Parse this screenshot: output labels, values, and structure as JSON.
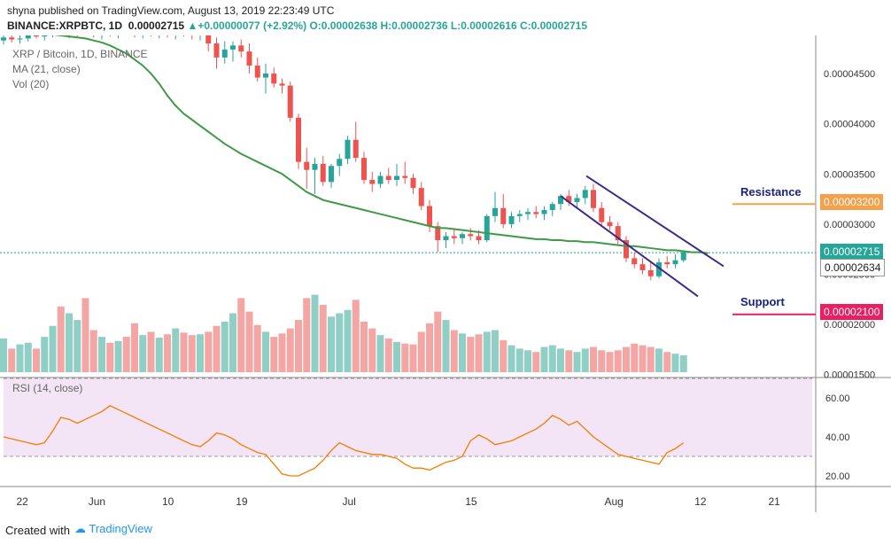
{
  "header": {
    "publish_line": "shyna published on TradingView.com, August 13, 2019 22:23:49 UTC",
    "symbol": "BINANCE:XRPBTC, 1D",
    "price": "0.00002715",
    "change_arrow": "▲",
    "change": "+0.00000077 (+2.92%)",
    "ohlc": "O:0.00002638 H:0.00002736 L:0.00002616 C:0.00002715"
  },
  "legend": {
    "series_name": "XRP / Bitcoin, 1D, BINANCE",
    "ma_label": "MA (21, close)",
    "vol_label": "Vol (20)",
    "rsi_label": "RSI (14, close)"
  },
  "annotations": {
    "resistance": "Resistance",
    "support": "Support"
  },
  "price_tags": {
    "resistance": "0.00003200",
    "last": "0.00002715",
    "prev": "0.00002634",
    "support": "0.00002100"
  },
  "footer": {
    "created_with": "Created with",
    "brand": "TradingView"
  },
  "colors": {
    "up": "#26a69a",
    "down": "#ef5350",
    "ma": "#3f9a46",
    "rsi": "#f57c00",
    "resistance": "#f5a04a",
    "support": "#e91e63",
    "channel": "#3f2a8c"
  },
  "chart_data": {
    "type": "candlestick",
    "price_axis": {
      "ticks": [
        "0.00004500",
        "0.00004000",
        "0.00003500",
        "0.00003000",
        "0.00002500",
        "0.00002000",
        "0.00001500"
      ],
      "range": [
        1.48e-05,
        4.88e-05
      ]
    },
    "time_axis": {
      "ticks": [
        "22",
        "Jun",
        "10",
        "19",
        "Jul",
        "15",
        "Aug",
        "12",
        "21"
      ]
    },
    "rsi_axis": {
      "ticks": [
        "60.00",
        "40.00",
        "20.00"
      ],
      "range": [
        15,
        70
      ],
      "band": [
        30,
        70
      ]
    },
    "candles": [
      {
        "o": 4.83,
        "h": 4.9,
        "l": 4.79,
        "c": 4.86
      },
      {
        "o": 4.86,
        "h": 4.92,
        "l": 4.81,
        "c": 4.84
      },
      {
        "o": 4.84,
        "h": 4.9,
        "l": 4.8,
        "c": 4.85
      },
      {
        "o": 4.85,
        "h": 4.95,
        "l": 4.82,
        "c": 4.9
      },
      {
        "o": 4.9,
        "h": 4.96,
        "l": 4.85,
        "c": 4.87
      },
      {
        "o": 4.87,
        "h": 4.93,
        "l": 4.83,
        "c": 4.9
      },
      {
        "o": 4.9,
        "h": 4.96,
        "l": 4.86,
        "c": 4.92
      },
      {
        "o": 4.92,
        "h": 4.98,
        "l": 4.87,
        "c": 4.89
      },
      {
        "o": 4.89,
        "h": 4.95,
        "l": 4.85,
        "c": 4.91
      },
      {
        "o": 4.91,
        "h": 4.97,
        "l": 4.87,
        "c": 4.93
      },
      {
        "o": 4.93,
        "h": 4.99,
        "l": 4.88,
        "c": 4.9
      },
      {
        "o": 4.9,
        "h": 4.96,
        "l": 4.86,
        "c": 4.88
      },
      {
        "o": 4.88,
        "h": 4.94,
        "l": 4.84,
        "c": 4.91
      },
      {
        "o": 4.91,
        "h": 4.97,
        "l": 4.87,
        "c": 4.89
      },
      {
        "o": 4.89,
        "h": 4.95,
        "l": 4.85,
        "c": 4.92
      },
      {
        "o": 4.92,
        "h": 4.97,
        "l": 4.88,
        "c": 4.9
      },
      {
        "o": 4.9,
        "h": 4.96,
        "l": 4.86,
        "c": 4.89
      },
      {
        "o": 4.89,
        "h": 4.95,
        "l": 4.85,
        "c": 4.91
      },
      {
        "o": 4.91,
        "h": 4.97,
        "l": 4.87,
        "c": 4.89
      },
      {
        "o": 4.89,
        "h": 4.95,
        "l": 4.85,
        "c": 4.9
      },
      {
        "o": 4.9,
        "h": 4.96,
        "l": 4.86,
        "c": 4.88
      },
      {
        "o": 4.88,
        "h": 4.94,
        "l": 4.84,
        "c": 4.91
      },
      {
        "o": 4.91,
        "h": 4.97,
        "l": 4.87,
        "c": 4.89
      },
      {
        "o": 4.89,
        "h": 4.94,
        "l": 4.84,
        "c": 4.88
      },
      {
        "o": 4.88,
        "h": 4.93,
        "l": 4.83,
        "c": 4.9
      },
      {
        "o": 4.9,
        "h": 4.94,
        "l": 4.72,
        "c": 4.8
      },
      {
        "o": 4.8,
        "h": 4.86,
        "l": 4.55,
        "c": 4.66
      },
      {
        "o": 4.66,
        "h": 4.82,
        "l": 4.6,
        "c": 4.74
      },
      {
        "o": 4.74,
        "h": 4.82,
        "l": 4.62,
        "c": 4.78
      },
      {
        "o": 4.78,
        "h": 4.84,
        "l": 4.66,
        "c": 4.72
      },
      {
        "o": 4.72,
        "h": 4.8,
        "l": 4.5,
        "c": 4.58
      },
      {
        "o": 4.58,
        "h": 4.66,
        "l": 4.42,
        "c": 4.46
      },
      {
        "o": 4.46,
        "h": 4.6,
        "l": 4.3,
        "c": 4.5
      },
      {
        "o": 4.5,
        "h": 4.56,
        "l": 4.36,
        "c": 4.4
      },
      {
        "o": 4.4,
        "h": 4.45,
        "l": 4.3,
        "c": 4.38
      },
      {
        "o": 4.38,
        "h": 4.42,
        "l": 4.02,
        "c": 4.06
      },
      {
        "o": 4.06,
        "h": 4.1,
        "l": 3.55,
        "c": 3.62
      },
      {
        "o": 3.62,
        "h": 3.76,
        "l": 3.35,
        "c": 3.54
      },
      {
        "o": 3.54,
        "h": 3.66,
        "l": 3.3,
        "c": 3.6
      },
      {
        "o": 3.6,
        "h": 3.68,
        "l": 3.38,
        "c": 3.42
      },
      {
        "o": 3.42,
        "h": 3.6,
        "l": 3.36,
        "c": 3.58
      },
      {
        "o": 3.58,
        "h": 3.7,
        "l": 3.48,
        "c": 3.65
      },
      {
        "o": 3.65,
        "h": 3.88,
        "l": 3.6,
        "c": 3.84
      },
      {
        "o": 3.84,
        "h": 4.02,
        "l": 3.62,
        "c": 3.66
      },
      {
        "o": 3.66,
        "h": 3.72,
        "l": 3.4,
        "c": 3.44
      },
      {
        "o": 3.44,
        "h": 3.52,
        "l": 3.32,
        "c": 3.4
      },
      {
        "o": 3.4,
        "h": 3.52,
        "l": 3.36,
        "c": 3.48
      },
      {
        "o": 3.48,
        "h": 3.56,
        "l": 3.4,
        "c": 3.44
      },
      {
        "o": 3.44,
        "h": 3.6,
        "l": 3.38,
        "c": 3.48
      },
      {
        "o": 3.48,
        "h": 3.62,
        "l": 3.4,
        "c": 3.46
      },
      {
        "o": 3.46,
        "h": 3.5,
        "l": 3.3,
        "c": 3.36
      },
      {
        "o": 3.36,
        "h": 3.42,
        "l": 3.14,
        "c": 3.18
      },
      {
        "o": 3.18,
        "h": 3.24,
        "l": 2.92,
        "c": 2.98
      },
      {
        "o": 2.98,
        "h": 3.02,
        "l": 2.72,
        "c": 2.84
      },
      {
        "o": 2.84,
        "h": 2.92,
        "l": 2.76,
        "c": 2.88
      },
      {
        "o": 2.88,
        "h": 2.96,
        "l": 2.8,
        "c": 2.86
      },
      {
        "o": 2.86,
        "h": 2.92,
        "l": 2.8,
        "c": 2.9
      },
      {
        "o": 2.9,
        "h": 2.96,
        "l": 2.84,
        "c": 2.88
      },
      {
        "o": 2.88,
        "h": 2.94,
        "l": 2.8,
        "c": 2.84
      },
      {
        "o": 2.84,
        "h": 3.1,
        "l": 2.82,
        "c": 3.08
      },
      {
        "o": 3.08,
        "h": 3.32,
        "l": 3.02,
        "c": 3.16
      },
      {
        "o": 3.16,
        "h": 3.3,
        "l": 2.96,
        "c": 3.0
      },
      {
        "o": 3.0,
        "h": 3.12,
        "l": 2.96,
        "c": 3.08
      },
      {
        "o": 3.08,
        "h": 3.14,
        "l": 3.02,
        "c": 3.1
      },
      {
        "o": 3.1,
        "h": 3.16,
        "l": 3.04,
        "c": 3.12
      },
      {
        "o": 3.12,
        "h": 3.18,
        "l": 3.06,
        "c": 3.1
      },
      {
        "o": 3.1,
        "h": 3.18,
        "l": 3.04,
        "c": 3.14
      },
      {
        "o": 3.14,
        "h": 3.22,
        "l": 3.08,
        "c": 3.2
      },
      {
        "o": 3.2,
        "h": 3.3,
        "l": 3.14,
        "c": 3.28
      },
      {
        "o": 3.28,
        "h": 3.34,
        "l": 3.18,
        "c": 3.22
      },
      {
        "o": 3.22,
        "h": 3.3,
        "l": 3.16,
        "c": 3.26
      },
      {
        "o": 3.26,
        "h": 3.38,
        "l": 3.2,
        "c": 3.34
      },
      {
        "o": 3.34,
        "h": 3.4,
        "l": 3.12,
        "c": 3.16
      },
      {
        "o": 3.16,
        "h": 3.22,
        "l": 2.98,
        "c": 3.02
      },
      {
        "o": 3.02,
        "h": 3.08,
        "l": 2.94,
        "c": 2.98
      },
      {
        "o": 2.98,
        "h": 3.02,
        "l": 2.8,
        "c": 2.84
      },
      {
        "o": 2.84,
        "h": 2.88,
        "l": 2.62,
        "c": 2.66
      },
      {
        "o": 2.66,
        "h": 2.72,
        "l": 2.56,
        "c": 2.6
      },
      {
        "o": 2.6,
        "h": 2.66,
        "l": 2.5,
        "c": 2.54
      },
      {
        "o": 2.54,
        "h": 2.62,
        "l": 2.44,
        "c": 2.48
      },
      {
        "o": 2.48,
        "h": 2.66,
        "l": 2.46,
        "c": 2.62
      },
      {
        "o": 2.62,
        "h": 2.68,
        "l": 2.56,
        "c": 2.6
      },
      {
        "o": 2.6,
        "h": 2.7,
        "l": 2.56,
        "c": 2.64
      },
      {
        "o": 2.64,
        "h": 2.74,
        "l": 2.62,
        "c": 2.72
      }
    ],
    "ma": [
      4.9,
      4.9,
      4.9,
      4.89,
      4.88,
      4.87,
      4.86,
      4.85,
      4.83,
      4.81,
      4.78,
      4.74,
      4.7,
      4.64,
      4.58,
      4.5,
      4.4,
      4.28,
      4.18,
      4.1,
      4.04,
      3.98,
      3.92,
      3.86,
      3.8,
      3.75,
      3.7,
      3.66,
      3.62,
      3.58,
      3.54,
      3.5,
      3.44,
      3.38,
      3.32,
      3.28,
      3.24,
      3.22,
      3.2,
      3.18,
      3.16,
      3.14,
      3.12,
      3.1,
      3.08,
      3.06,
      3.04,
      3.02,
      3.0,
      2.98,
      2.96,
      2.96,
      2.95,
      2.94,
      2.93,
      2.92,
      2.91,
      2.9,
      2.89,
      2.88,
      2.87,
      2.86,
      2.85,
      2.85,
      2.84,
      2.84,
      2.83,
      2.83,
      2.82,
      2.82,
      2.81,
      2.8,
      2.79,
      2.78,
      2.78,
      2.77,
      2.76,
      2.75,
      2.74,
      2.74,
      2.73,
      2.72,
      2.72,
      2.71
    ],
    "volume": [
      40,
      28,
      33,
      35,
      28,
      42,
      55,
      78,
      70,
      62,
      88,
      50,
      42,
      35,
      37,
      42,
      58,
      44,
      48,
      41,
      45,
      52,
      47,
      44,
      45,
      48,
      55,
      60,
      70,
      88,
      72,
      56,
      48,
      42,
      46,
      52,
      62,
      88,
      92,
      80,
      66,
      70,
      74,
      86,
      60,
      52,
      44,
      40,
      36,
      34,
      33,
      48,
      58,
      72,
      62,
      50,
      46,
      42,
      45,
      48,
      50,
      38,
      32,
      28,
      26,
      24,
      30,
      32,
      28,
      26,
      24,
      28,
      30,
      26,
      24,
      26,
      30,
      34,
      32,
      30,
      28,
      24,
      22,
      20
    ],
    "rsi": [
      40,
      39,
      38,
      37,
      36,
      37,
      43,
      50,
      49,
      47,
      49,
      51,
      53,
      56,
      54,
      52,
      50,
      48,
      46,
      44,
      42,
      40,
      38,
      36,
      35,
      38,
      42,
      41,
      39,
      36,
      34,
      32,
      31,
      26,
      21,
      20,
      20,
      22,
      24,
      28,
      33,
      37,
      35,
      33,
      32,
      31,
      31,
      30,
      29,
      26,
      24,
      24,
      23,
      25,
      27,
      28,
      30,
      38,
      41,
      39,
      36,
      37,
      38,
      40,
      42,
      44,
      47,
      51,
      49,
      46,
      48,
      44,
      40,
      37,
      34,
      31,
      30,
      29,
      28,
      27,
      26,
      32,
      34,
      37
    ]
  }
}
